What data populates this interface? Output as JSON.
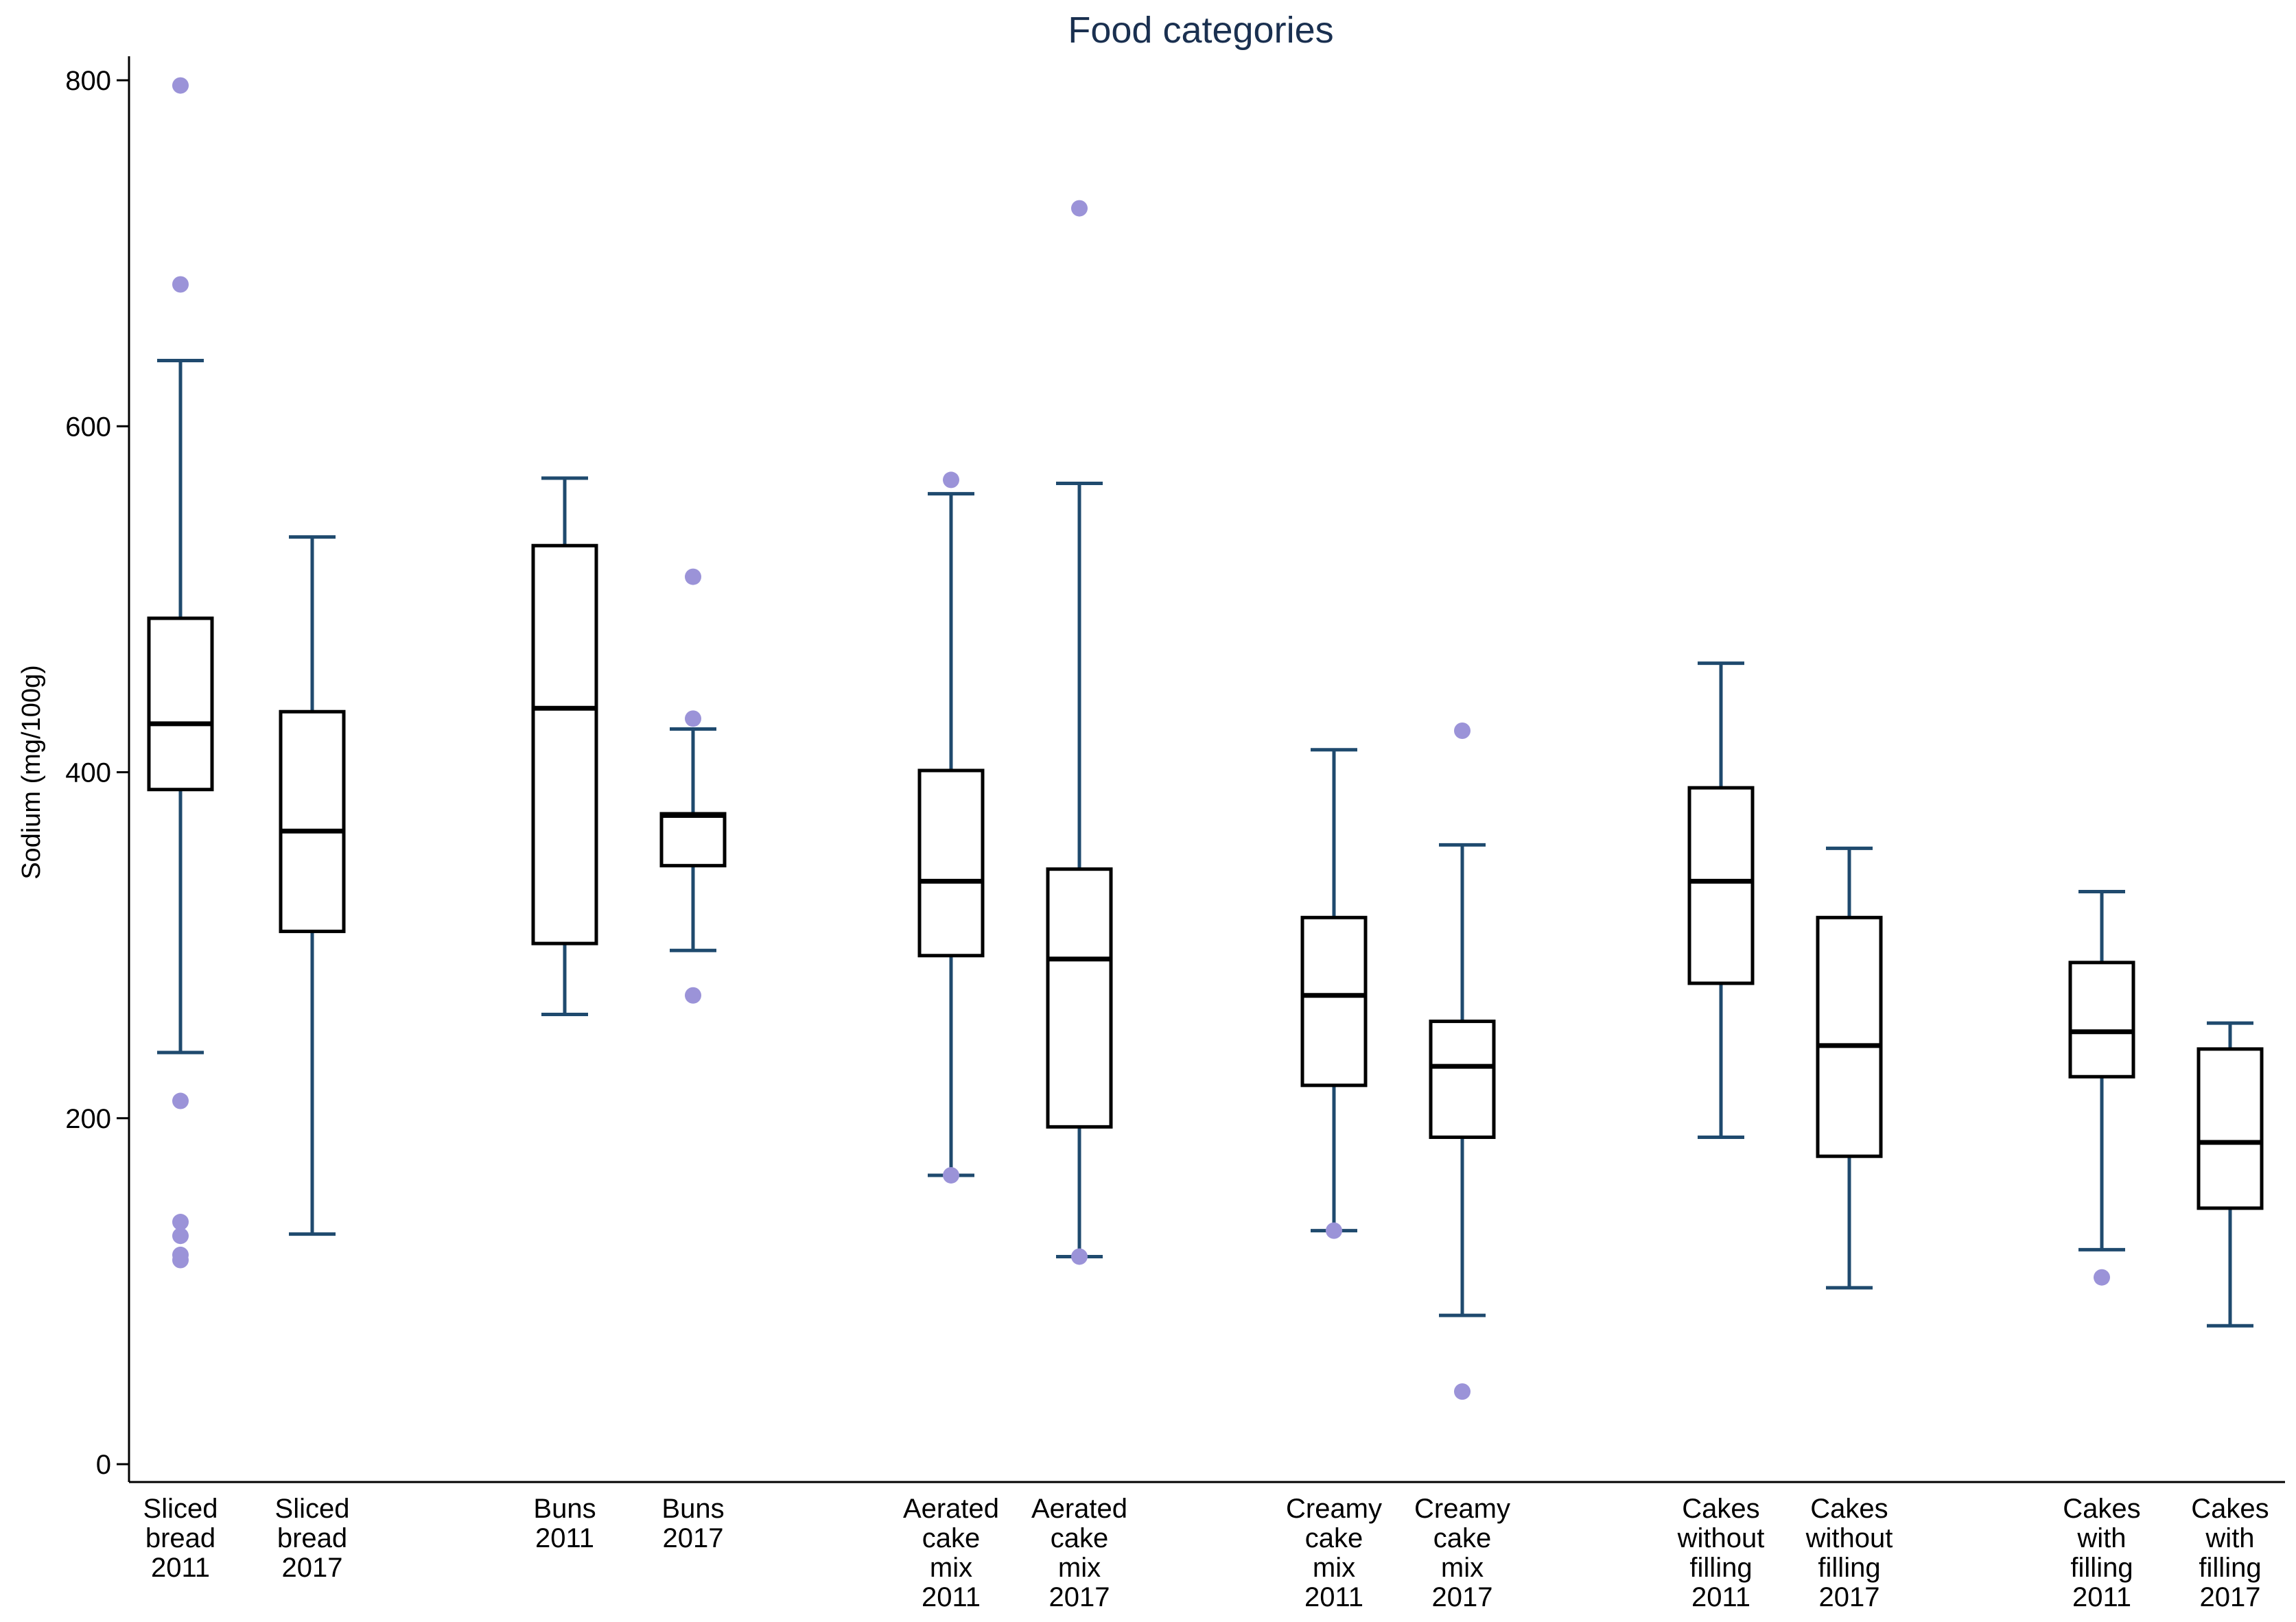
{
  "colors": {
    "whisker": "#1f4a6e",
    "box": "#000000",
    "outlier": "#9b93d8",
    "title": "#1a3050"
  },
  "chart_data": {
    "type": "box",
    "title": "Food categories",
    "xlabel": "",
    "ylabel": "Sodium (mg/100g)",
    "ylim": [
      0,
      800
    ],
    "yticks": [
      0,
      200,
      400,
      600,
      800
    ],
    "grid": false,
    "categories": [
      {
        "label_lines": [
          "Sliced",
          "bread",
          "2011"
        ],
        "group": 0,
        "whisker_low": 238,
        "q1": 390,
        "median": 428,
        "q3": 489,
        "whisker_high": 638,
        "outliers": [
          797,
          682,
          210,
          140,
          132,
          121,
          118
        ]
      },
      {
        "label_lines": [
          "Sliced",
          "bread",
          "2017"
        ],
        "group": 0,
        "whisker_low": 133,
        "q1": 308,
        "median": 366,
        "q3": 435,
        "whisker_high": 536,
        "outliers": []
      },
      {
        "label_lines": [
          "Buns",
          "2011"
        ],
        "group": 1,
        "whisker_low": 260,
        "q1": 301,
        "median": 437,
        "q3": 531,
        "whisker_high": 570,
        "outliers": []
      },
      {
        "label_lines": [
          "Buns",
          "2017"
        ],
        "group": 1,
        "whisker_low": 297,
        "q1": 346,
        "median": 375,
        "q3": 376,
        "whisker_high": 425,
        "outliers": [
          513,
          431,
          271
        ]
      },
      {
        "label_lines": [
          "Aerated",
          "cake",
          "mix",
          "2011"
        ],
        "group": 2,
        "whisker_low": 167,
        "q1": 294,
        "median": 337,
        "q3": 401,
        "whisker_high": 561,
        "outliers": [
          569,
          167
        ]
      },
      {
        "label_lines": [
          "Aerated",
          "cake",
          "mix",
          "2017"
        ],
        "group": 2,
        "whisker_low": 120,
        "q1": 195,
        "median": 292,
        "q3": 344,
        "whisker_high": 567,
        "outliers": [
          726,
          120
        ]
      },
      {
        "label_lines": [
          "Creamy",
          "cake",
          "mix",
          "2011"
        ],
        "group": 3,
        "whisker_low": 135,
        "q1": 219,
        "median": 271,
        "q3": 316,
        "whisker_high": 413,
        "outliers": [
          135
        ]
      },
      {
        "label_lines": [
          "Creamy",
          "cake",
          "mix",
          "2017"
        ],
        "group": 3,
        "whisker_low": 86,
        "q1": 189,
        "median": 230,
        "q3": 256,
        "whisker_high": 358,
        "outliers": [
          424,
          42
        ]
      },
      {
        "label_lines": [
          "Cakes",
          "without",
          "filling",
          "2011"
        ],
        "group": 4,
        "whisker_low": 189,
        "q1": 278,
        "median": 337,
        "q3": 391,
        "whisker_high": 463,
        "outliers": []
      },
      {
        "label_lines": [
          "Cakes",
          "without",
          "filling",
          "2017"
        ],
        "group": 4,
        "whisker_low": 102,
        "q1": 178,
        "median": 242,
        "q3": 316,
        "whisker_high": 356,
        "outliers": []
      },
      {
        "label_lines": [
          "Cakes",
          "with",
          "filling",
          "2011"
        ],
        "group": 5,
        "whisker_low": 124,
        "q1": 224,
        "median": 250,
        "q3": 290,
        "whisker_high": 331,
        "outliers": [
          108
        ]
      },
      {
        "label_lines": [
          "Cakes",
          "with",
          "filling",
          "2017"
        ],
        "group": 5,
        "whisker_low": 80,
        "q1": 148,
        "median": 186,
        "q3": 240,
        "whisker_high": 255,
        "outliers": []
      }
    ]
  }
}
